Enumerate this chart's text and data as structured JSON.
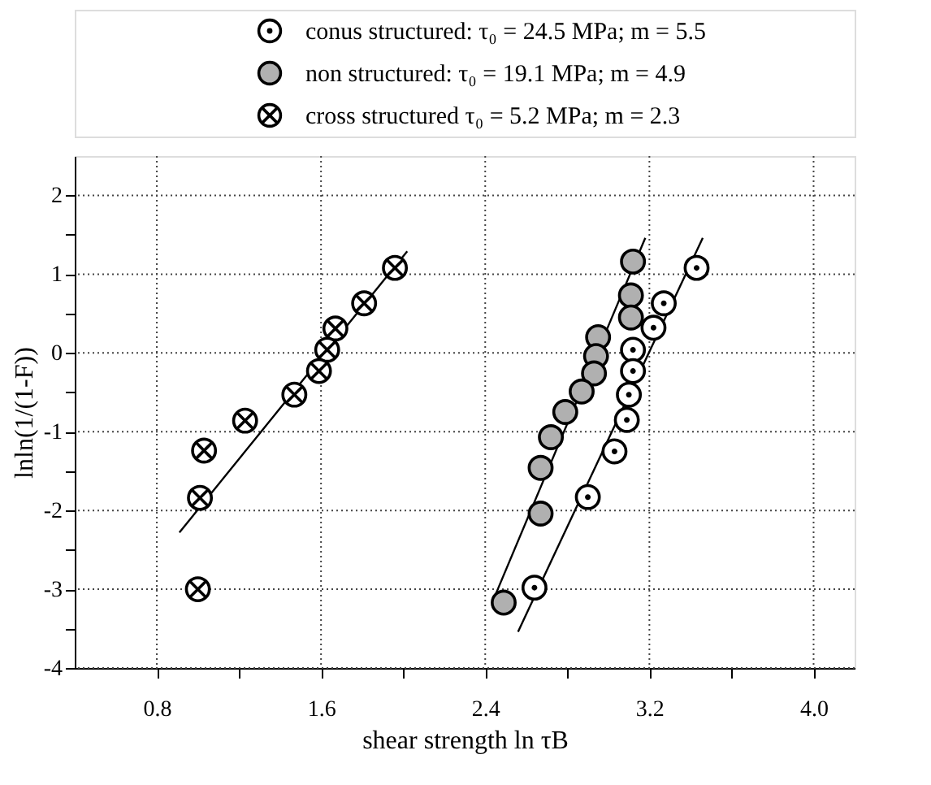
{
  "chart_data": {
    "type": "scatter",
    "xlabel": "shear strength ln τB",
    "ylabel": "lnln(1/(1-F))",
    "xlim": [
      0.4,
      4.2
    ],
    "ylim": [
      -4,
      2.5
    ],
    "xticks": [
      0.8,
      {
        "value": 1.2,
        "label": null
      },
      1.6,
      {
        "value": 2.0,
        "label": null
      },
      2.4,
      {
        "value": 2.8,
        "label": null
      },
      3.2,
      {
        "value": 3.6,
        "label": null
      },
      {
        "value": 4.0,
        "label": "4.0"
      }
    ],
    "yticks": [
      -4,
      {
        "value": -3.5,
        "label": null
      },
      -3,
      {
        "value": -2.5,
        "label": null
      },
      -2,
      {
        "value": -1.5,
        "label": null
      },
      -1,
      {
        "value": -0.5,
        "label": null
      },
      0,
      {
        "value": 0.5,
        "label": null
      },
      1,
      {
        "value": 1.5,
        "label": null
      },
      2
    ],
    "grid": true,
    "legend": "top",
    "series": [
      {
        "name": "conus structured:  τ₀ = 24.5 MPa; m = 5.5",
        "color": "#ffffff",
        "marker": "circle",
        "x": [
          3.43,
          3.27,
          3.22,
          3.12,
          3.12,
          3.1,
          3.09,
          3.03,
          2.9,
          2.64
        ],
        "values": [
          1.08,
          0.63,
          0.32,
          0.04,
          -0.23,
          -0.53,
          -0.85,
          -1.25,
          -1.83,
          -2.98
        ]
      },
      {
        "name": "non structured: τ₀ = 19.1 MPa; m = 4.9",
        "color": "#b0b0b0",
        "marker": "circle",
        "x": [
          3.12,
          3.11,
          3.11,
          2.95,
          2.94,
          2.93,
          2.87,
          2.79,
          2.72,
          2.67,
          2.67,
          2.49
        ],
        "values": [
          1.16,
          0.73,
          0.45,
          0.2,
          -0.04,
          -0.26,
          -0.49,
          -0.75,
          -1.07,
          -1.46,
          -2.04,
          -3.17
        ]
      },
      {
        "name": "cross structured τ₀ =  5.2 MPa; m = 2.3",
        "color": "#ffffff",
        "marker": "cross",
        "x": [
          1.96,
          1.81,
          1.67,
          1.63,
          1.59,
          1.47,
          1.23,
          1.03,
          1.01,
          1.0
        ],
        "values": [
          1.08,
          0.63,
          0.31,
          0.04,
          -0.23,
          -0.53,
          -0.86,
          -1.24,
          -1.84,
          -3.0
        ]
      },
      {
        "type": "line",
        "color": "#000000",
        "x": [
          2.56,
          3.46
        ],
        "values": [
          -3.54,
          1.46
        ]
      },
      {
        "type": "line",
        "color": "#000000",
        "x": [
          2.45,
          3.18
        ],
        "values": [
          -3.07,
          1.46
        ]
      },
      {
        "type": "line",
        "color": "#000000",
        "x": [
          0.91,
          2.02
        ],
        "values": [
          -2.28,
          1.29
        ]
      }
    ]
  }
}
